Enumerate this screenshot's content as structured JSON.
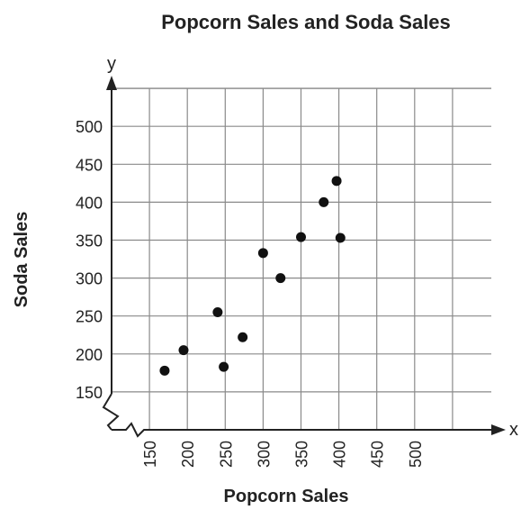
{
  "chart_data": {
    "type": "scatter",
    "title": "Popcorn Sales and Soda Sales",
    "xlabel": "Popcorn Sales",
    "ylabel": "Soda Sales",
    "x_axis_letter": "x",
    "y_axis_letter": "y",
    "xticks": [
      150,
      200,
      250,
      300,
      350,
      400,
      450,
      500
    ],
    "yticks": [
      150,
      200,
      250,
      300,
      350,
      400,
      450,
      500
    ],
    "xlim": [
      100,
      550
    ],
    "ylim": [
      100,
      550
    ],
    "broken_axes": true,
    "grid": true,
    "point_color": "#111111",
    "points": [
      {
        "x": 170,
        "y": 178
      },
      {
        "x": 195,
        "y": 205
      },
      {
        "x": 240,
        "y": 255
      },
      {
        "x": 248,
        "y": 183
      },
      {
        "x": 273,
        "y": 222
      },
      {
        "x": 300,
        "y": 333
      },
      {
        "x": 323,
        "y": 300
      },
      {
        "x": 350,
        "y": 354
      },
      {
        "x": 380,
        "y": 400
      },
      {
        "x": 397,
        "y": 428
      },
      {
        "x": 402,
        "y": 353
      }
    ]
  }
}
